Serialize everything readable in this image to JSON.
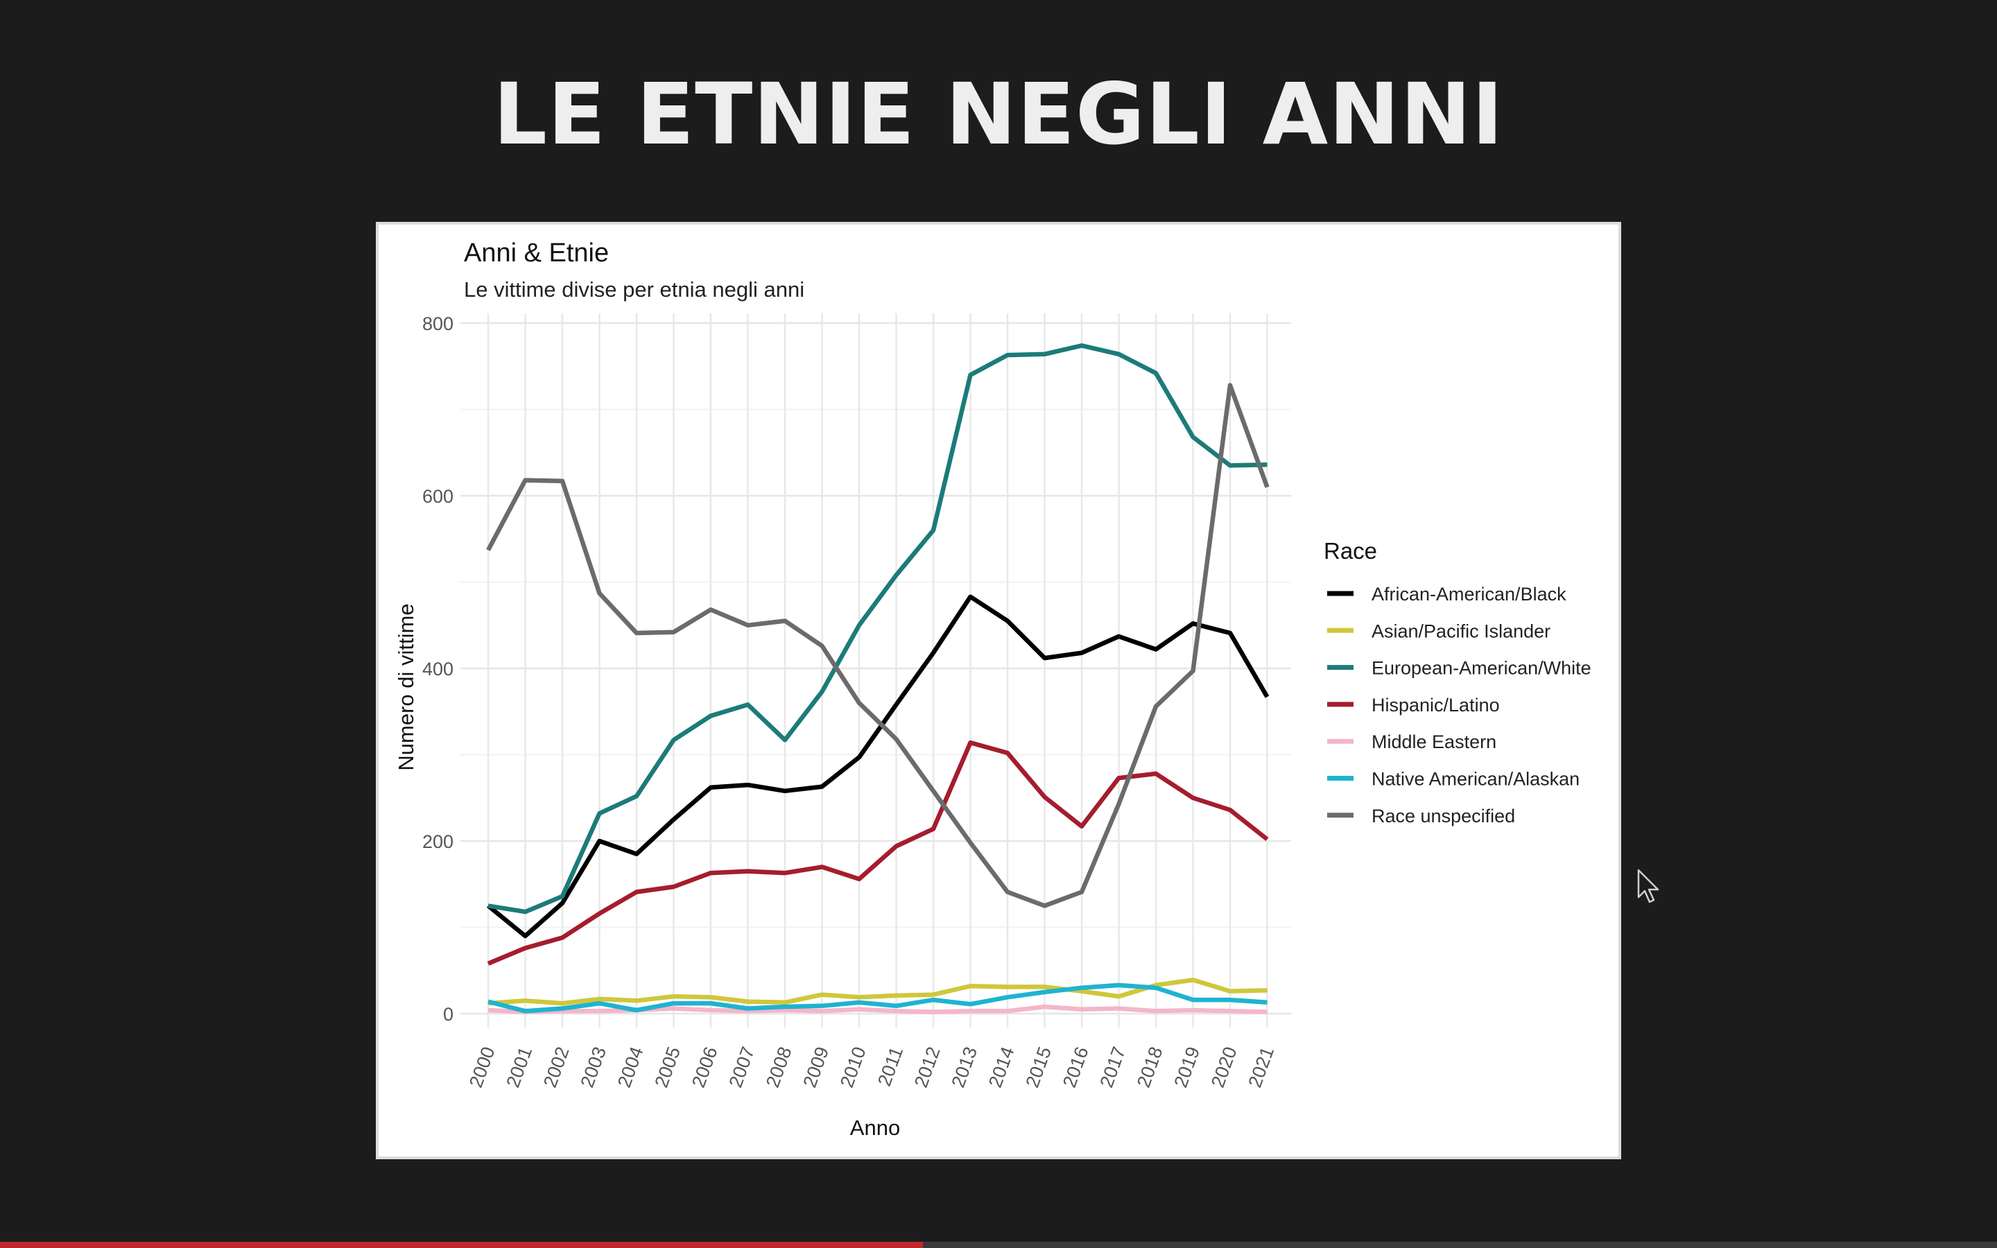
{
  "slide": {
    "title": "LE ETNIE NEGLI ANNI"
  },
  "video": {
    "progress_fraction": 0.462
  },
  "chart_data": {
    "type": "line",
    "title": "Anni & Etnie",
    "subtitle": "Le vittime divise per etnia negli anni",
    "xlabel": "Anno",
    "ylabel": "Numero di vittime",
    "ylim": [
      0,
      800
    ],
    "yticks": [
      0,
      200,
      400,
      600,
      800
    ],
    "grid": true,
    "legend": {
      "title": "Race",
      "placement": "right"
    },
    "x": [
      2000,
      2001,
      2002,
      2003,
      2004,
      2005,
      2006,
      2007,
      2008,
      2009,
      2010,
      2011,
      2012,
      2013,
      2014,
      2015,
      2016,
      2017,
      2018,
      2019,
      2020,
      2021
    ],
    "series": [
      {
        "name": "African-American/Black",
        "color": "#000000",
        "values": [
          125,
          90,
          128,
          200,
          185,
          225,
          262,
          265,
          258,
          263,
          297,
          358,
          418,
          483,
          455,
          412,
          418,
          437,
          422,
          452,
          441,
          367
        ]
      },
      {
        "name": "Asian/Pacific Islander",
        "color": "#cfc73a",
        "values": [
          12,
          15,
          12,
          17,
          15,
          20,
          19,
          14,
          13,
          22,
          19,
          21,
          22,
          32,
          31,
          31,
          26,
          20,
          33,
          39,
          26,
          27
        ]
      },
      {
        "name": "European-American/White",
        "color": "#1c7b79",
        "values": [
          125,
          118,
          136,
          232,
          252,
          317,
          345,
          358,
          317,
          373,
          450,
          508,
          560,
          740,
          763,
          764,
          774,
          764,
          742,
          668,
          635,
          636
        ]
      },
      {
        "name": "Hispanic/Latino",
        "color": "#a51d2d",
        "values": [
          58,
          76,
          88,
          116,
          141,
          147,
          163,
          165,
          163,
          170,
          156,
          194,
          214,
          314,
          302,
          251,
          217,
          273,
          278,
          250,
          236,
          202
        ]
      },
      {
        "name": "Middle Eastern",
        "color": "#f4b6c9",
        "values": [
          4,
          2,
          3,
          3,
          4,
          6,
          4,
          3,
          4,
          3,
          5,
          3,
          2,
          3,
          3,
          8,
          5,
          6,
          3,
          4,
          3,
          2
        ]
      },
      {
        "name": "Native American/Alaskan",
        "color": "#1fb3d1",
        "values": [
          14,
          3,
          6,
          12,
          4,
          12,
          12,
          6,
          8,
          9,
          13,
          9,
          16,
          11,
          19,
          25,
          30,
          33,
          30,
          16,
          16,
          13
        ]
      },
      {
        "name": "Race unspecified",
        "color": "#6b6b6b",
        "values": [
          537,
          618,
          617,
          487,
          441,
          442,
          468,
          450,
          455,
          426,
          360,
          318,
          258,
          198,
          141,
          125,
          141,
          243,
          356,
          397,
          728,
          610
        ]
      }
    ]
  }
}
